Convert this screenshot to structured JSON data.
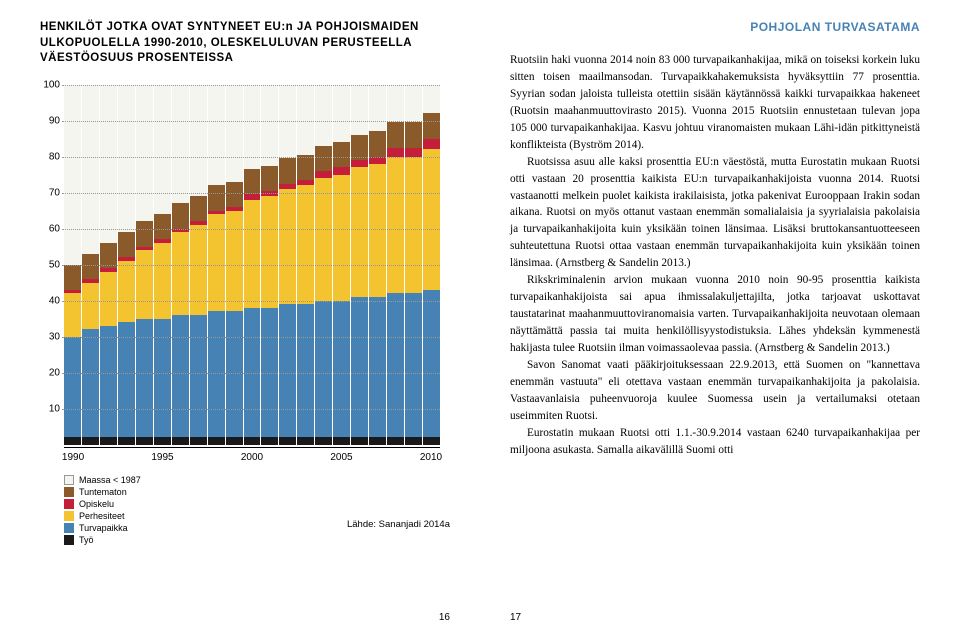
{
  "chart": {
    "title_line1": "HENKILÖT JOTKA OVAT SYNTYNEET EU:n JA POHJOISMAIDEN",
    "title_line2": "ULKOPUOLELLA 1990-2010, OLESKELULUVAN PERUSTEELLA",
    "title_line3": "VÄESTÖOSUUS PROSENTEISSA",
    "type": "stacked-bar",
    "ylim": [
      0,
      100
    ],
    "ytick_step": 10,
    "y_ticks": [
      10,
      20,
      30,
      40,
      50,
      60,
      70,
      80,
      90,
      100
    ],
    "x_labels": [
      "1990",
      "1995",
      "2000",
      "2005",
      "2010"
    ],
    "x_positions_pct": [
      2.4,
      26.2,
      50,
      73.8,
      97.6
    ],
    "colors": {
      "tyo": "#1a1a1a",
      "turvapaikka": "#4682b4",
      "perhesiteet": "#f4c430",
      "opiskelu": "#c41e3a",
      "tuntematon": "#8b5a2b",
      "maassa": "#f5f5f0"
    },
    "background_color": "#ffffff",
    "grid_color": "#999999",
    "years": [
      1990,
      1991,
      1992,
      1993,
      1994,
      1995,
      1996,
      1997,
      1998,
      1999,
      2000,
      2001,
      2002,
      2003,
      2004,
      2005,
      2006,
      2007,
      2008,
      2009,
      2010
    ],
    "series_stack_bottom_to_top": [
      "tyo",
      "turvapaikka",
      "perhesiteet",
      "opiskelu",
      "tuntematon",
      "maassa"
    ],
    "data": {
      "tyo": [
        2,
        2,
        2,
        2,
        2,
        2,
        2,
        2,
        2,
        2,
        2,
        2,
        2,
        2,
        2,
        2,
        2,
        2,
        2,
        2,
        2
      ],
      "turvapaikka": [
        28,
        30,
        31,
        32,
        33,
        33,
        34,
        34,
        35,
        35,
        36,
        36,
        37,
        37,
        38,
        38,
        39,
        39,
        40,
        40,
        41
      ],
      "perhesiteet": [
        12,
        13,
        15,
        17,
        19,
        21,
        23,
        25,
        27,
        28,
        30,
        31,
        32,
        33,
        34,
        35,
        36,
        37,
        38,
        38,
        39
      ],
      "opiskelu": [
        1,
        1,
        1,
        1,
        1,
        1,
        1,
        1,
        1,
        1,
        1.5,
        1.5,
        1.5,
        1.5,
        2,
        2,
        2,
        2,
        2.5,
        2.5,
        3
      ],
      "tuntematon": [
        7,
        7,
        7,
        7,
        7,
        7,
        7,
        7,
        7,
        7,
        7,
        7,
        7,
        7,
        7,
        7,
        7,
        7,
        7,
        7,
        7
      ],
      "maassa": [
        50,
        47,
        44,
        41,
        38,
        36,
        33,
        31,
        28,
        27,
        23.5,
        22.5,
        20.5,
        19.5,
        17,
        16,
        14,
        13,
        10.5,
        10.5,
        8
      ]
    },
    "legend": [
      {
        "key": "maassa",
        "label": "Maassa < 1987"
      },
      {
        "key": "tuntematon",
        "label": "Tuntematon"
      },
      {
        "key": "opiskelu",
        "label": "Opiskelu"
      },
      {
        "key": "perhesiteet",
        "label": "Perhesiteet"
      },
      {
        "key": "turvapaikka",
        "label": "Turvapaikka"
      },
      {
        "key": "tyo",
        "label": "Työ"
      }
    ],
    "source": "Lähde: Sananjadi 2014a"
  },
  "right": {
    "title": "POHJOLAN TURVASATAMA",
    "title_color": "#4682b4",
    "paragraphs": [
      "Ruotsiin haki vuonna 2014 noin 83 000 turvapaikanhakijaa, mikä on toiseksi korkein luku sitten toisen maailmansodan. Turvapaikkahakemuksista hyväksyttiin 77 prosenttia. Syyrian sodan jaloista tulleista otettiin sisään käytännössä kaikki turvapaikkaa hakeneet (Ruotsin maahanmuuttovirasto 2015). Vuonna 2015 Ruotsiin ennustetaan tulevan jopa 105 000 turvapaikanhakijaa. Kasvu johtuu viranomaisten mukaan Lähi-idän pitkittyneistä konflikteista (Byström 2014).",
      "Ruotsissa asuu alle kaksi prosenttia EU:n väestöstä, mutta Eurostatin mukaan Ruotsi otti vastaan 20 prosenttia kaikista EU:n turvapaikanhakijoista vuonna 2014. Ruotsi vastaanotti melkein puolet kaikista irakilaisista, jotka pakenivat Eurooppaan Irakin sodan aikana. Ruotsi on myös ottanut vastaan enemmän somalialaisia ja syyrialaisia pakolaisia ja turvapaikanhakijoita kuin yksikään toinen länsimaa. Lisäksi bruttokansantuotteeseen suhteutettuna Ruotsi ottaa vastaan enemmän turvapaikanhakijoita kuin yksikään toinen länsimaa. (Arnstberg & Sandelin 2013.)",
      "Rikskriminalenin arvion mukaan vuonna 2010 noin 90-95 prosenttia kaikista turvapaikanhakijoista sai apua ihmissalakuljettajilta, jotka tarjoavat uskottavat taustatarinat maahanmuuttoviranomaisia varten. Turvapaikanhakijoita neuvotaan olemaan näyttämättä passia tai muita henkilöllisyystodistuksia. Lähes yhdeksän kymmenestä hakijasta tulee Ruotsiin ilman voimassaolevaa passia. (Arnstberg & Sandelin 2013.)",
      "Savon Sanomat vaati pääkirjoituksessaan 22.9.2013, että Suomen on \"kannettava enemmän vastuuta\" eli otettava vastaan enemmän turvapaikanhakijoita ja pakolaisia. Vastaavanlaisia puheenvuoroja kuulee Suomessa usein ja vertailumaksi otetaan useimmiten Ruotsi.",
      "Eurostatin mukaan Ruotsi otti 1.1.-30.9.2014 vastaan 6240 turvapaikanhakijaa per miljoona asukasta. Samalla aikavälillä Suomi otti"
    ]
  },
  "page_left": "16",
  "page_right": "17"
}
